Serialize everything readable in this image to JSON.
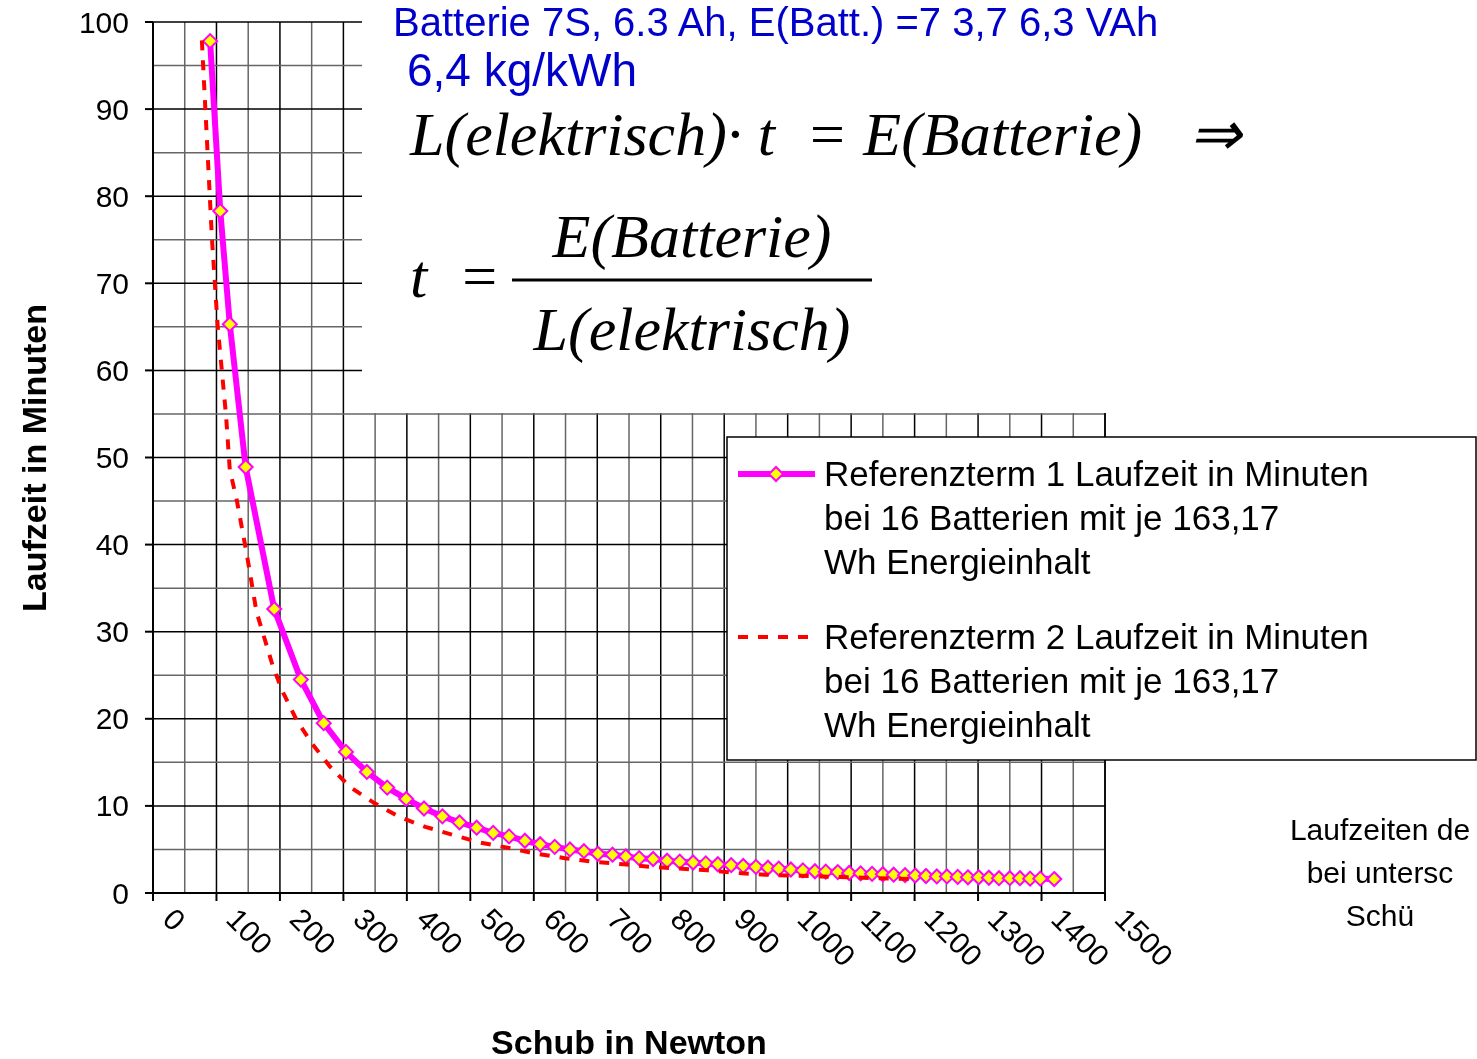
{
  "chart_data": {
    "type": "line",
    "title": "Batterie 7S, 6.3  Ah, E(Batt.) =7   3,7    6,3 VAh",
    "subtitle": "6,4 kg/kWh",
    "xlabel": "Schub in Newton",
    "ylabel": "Laufzeit in Minuten",
    "annotations": [
      "L(elektrisch)· t  = E(Batterie)   ⇒",
      "t  =",
      "E(Batterie)",
      "L(elektrisch)",
      "Laufzeiten de\nbei untersc\nSchü"
    ],
    "series": [
      {
        "name": "Referenzterm 1 Laufzeit in Minuten\nbei 16 Batterien mit je 163,17\nWh Energieinhalt",
        "color": "#ff00ff",
        "marker": "diamond",
        "line_style": "solid",
        "x": [
          90,
          106,
          121,
          146,
          191,
          233,
          269,
          304,
          337,
          369,
          399,
          427,
          456,
          483,
          510,
          536,
          561,
          586,
          610,
          633,
          657,
          679,
          701,
          724,
          745,
          766,
          788,
          810,
          830,
          851,
          871,
          890,
          911,
          930,
          950,
          969,
          986,
          1005,
          1024,
          1043,
          1060,
          1079,
          1097,
          1115,
          1133,
          1150,
          1167,
          1185,
          1201,
          1218,
          1235,
          1251,
          1268,
          1284,
          1301,
          1317,
          1333,
          1350,
          1366,
          1382,
          1398,
          1420
        ],
        "values": [
          97.8,
          78.3,
          65.3,
          48.9,
          32.6,
          24.5,
          19.5,
          16.2,
          13.9,
          12.1,
          10.8,
          9.7,
          8.8,
          8.1,
          7.5,
          6.9,
          6.5,
          6.0,
          5.6,
          5.3,
          5.0,
          4.8,
          4.5,
          4.4,
          4.2,
          4.0,
          3.9,
          3.7,
          3.6,
          3.5,
          3.4,
          3.3,
          3.2,
          3.1,
          3.0,
          2.9,
          2.8,
          2.7,
          2.6,
          2.5,
          2.45,
          2.4,
          2.3,
          2.25,
          2.2,
          2.15,
          2.1,
          2.05,
          2.0,
          1.95,
          1.9,
          1.9,
          1.85,
          1.8,
          1.8,
          1.75,
          1.7,
          1.7,
          1.7,
          1.65,
          1.65,
          1.6
        ]
      },
      {
        "name": "Referenzterm 2 Laufzeit in Minuten\nbei 16 Batterien mit je 163,17\nWh Energieinhalt",
        "color": "#ff0000",
        "marker": "none",
        "line_style": "dashed",
        "x": [
          77,
          86,
          93,
          102,
          115,
          121,
          132,
          148,
          163,
          189,
          205,
          226,
          250,
          279,
          310,
          347,
          389,
          429,
          471,
          515,
          559,
          604,
          649,
          693,
          741,
          785,
          829,
          874,
          919,
          964,
          1008,
          1053,
          1098,
          1142,
          1193
        ],
        "values": [
          97.9,
          85,
          75,
          65,
          54.9,
          48.6,
          45.1,
          38.8,
          32.3,
          26,
          23,
          19.9,
          17.2,
          14.5,
          12.2,
          10.4,
          8.7,
          7.6,
          6.7,
          5.8,
          5.2,
          4.5,
          4.0,
          3.6,
          3.3,
          3.0,
          2.8,
          2.6,
          2.3,
          2.1,
          2.0,
          1.9,
          1.8,
          1.7,
          1.6
        ]
      }
    ],
    "xlim": [
      0,
      1500
    ],
    "xticks": [
      0,
      100,
      200,
      300,
      400,
      500,
      600,
      700,
      800,
      900,
      1000,
      1100,
      1200,
      1300,
      1400,
      1500
    ],
    "ylim": [
      0,
      100
    ],
    "yticks": [
      0,
      10,
      20,
      30,
      40,
      50,
      60,
      70,
      80,
      90,
      100
    ],
    "grid": true,
    "legend": "right"
  }
}
